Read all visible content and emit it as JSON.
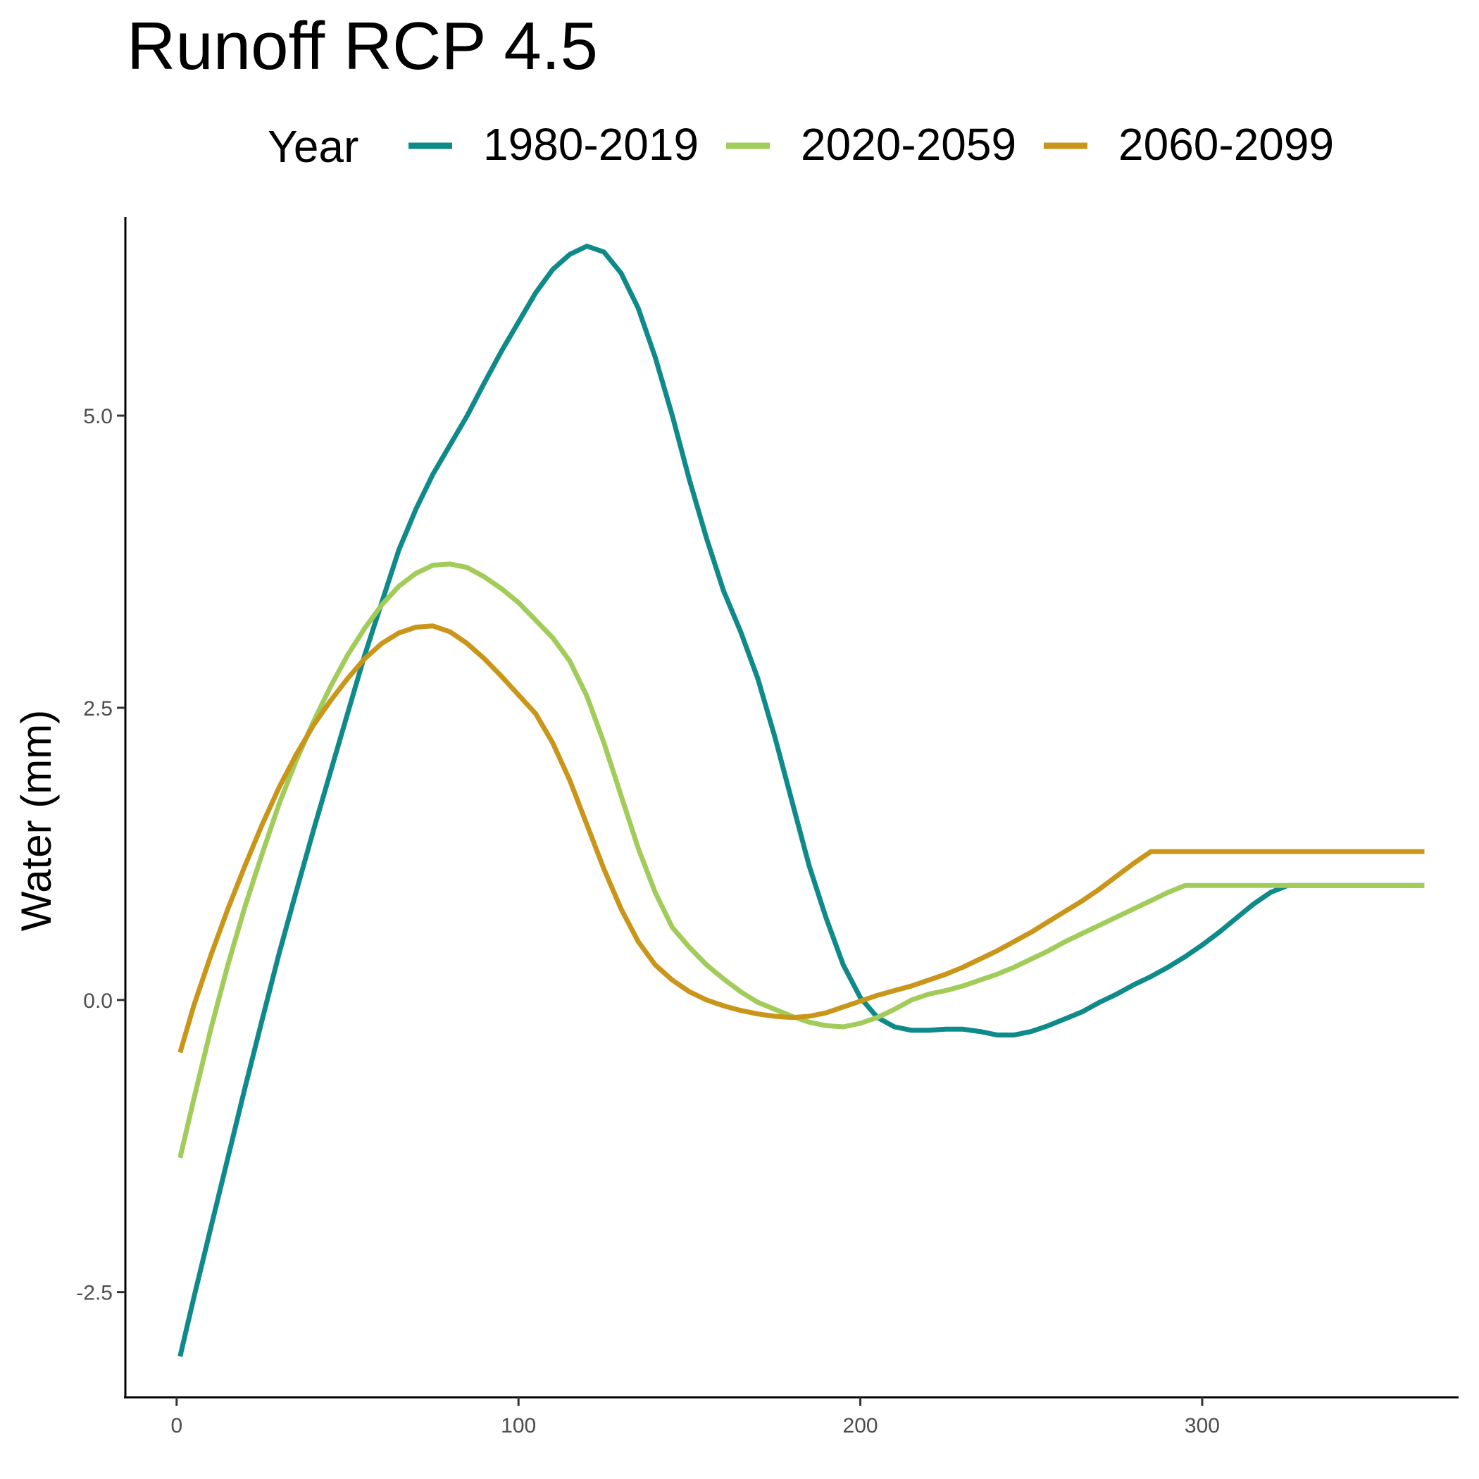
{
  "chart_data": {
    "type": "line",
    "title": "Runoff RCP 4.5",
    "xlabel": "",
    "ylabel": "Water (mm)",
    "legend": {
      "title": "Year",
      "position": "top"
    },
    "grid": false,
    "xlim": [
      -15,
      375
    ],
    "ylim": [
      -3.4,
      6.7
    ],
    "x_ticks": [
      {
        "value": 0,
        "label": "0"
      },
      {
        "value": 100,
        "label": "100"
      },
      {
        "value": 200,
        "label": "200"
      },
      {
        "value": 300,
        "label": "300"
      }
    ],
    "y_ticks": [
      {
        "value": -2.5,
        "label": "-2.5"
      },
      {
        "value": 0,
        "label": "0.0"
      },
      {
        "value": 2.5,
        "label": "2.5"
      },
      {
        "value": 5,
        "label": "5.0"
      }
    ],
    "x": [
      1,
      5,
      10,
      15,
      20,
      25,
      30,
      35,
      40,
      45,
      50,
      55,
      60,
      65,
      70,
      75,
      80,
      85,
      90,
      95,
      100,
      105,
      110,
      115,
      120,
      125,
      130,
      135,
      140,
      145,
      150,
      155,
      160,
      165,
      170,
      175,
      180,
      185,
      190,
      195,
      200,
      205,
      210,
      215,
      220,
      225,
      230,
      235,
      240,
      245,
      250,
      255,
      260,
      265,
      270,
      275,
      280,
      285,
      290,
      295,
      300,
      305,
      310,
      315,
      320,
      325,
      330,
      335,
      340,
      345,
      350,
      355,
      360,
      365
    ],
    "series": [
      {
        "name": "1980-2019",
        "color": "#0f8a8a",
        "values": [
          -3.05,
          -2.55,
          -1.95,
          -1.35,
          -0.75,
          -0.17,
          0.4,
          0.93,
          1.45,
          1.95,
          2.45,
          2.95,
          3.4,
          3.85,
          4.2,
          4.5,
          4.75,
          5.0,
          5.28,
          5.55,
          5.8,
          6.05,
          6.25,
          6.38,
          6.45,
          6.4,
          6.22,
          5.92,
          5.5,
          5.0,
          4.45,
          3.95,
          3.5,
          3.15,
          2.75,
          2.25,
          1.7,
          1.15,
          0.7,
          0.3,
          0.02,
          -0.15,
          -0.23,
          -0.26,
          -0.26,
          -0.25,
          -0.25,
          -0.27,
          -0.3,
          -0.3,
          -0.27,
          -0.22,
          -0.16,
          -0.1,
          -0.02,
          0.05,
          0.13,
          0.2,
          0.28,
          0.37,
          0.47,
          0.58,
          0.7,
          0.82,
          0.92,
          0.98,
          0.98,
          0.98,
          0.98,
          0.98,
          0.98,
          0.98,
          0.98,
          0.98
        ]
      },
      {
        "name": "2020-2059",
        "color": "#a2cc5a",
        "values": [
          -1.35,
          -0.85,
          -0.25,
          0.3,
          0.8,
          1.25,
          1.68,
          2.05,
          2.38,
          2.68,
          2.95,
          3.18,
          3.38,
          3.54,
          3.65,
          3.72,
          3.73,
          3.7,
          3.62,
          3.52,
          3.4,
          3.25,
          3.1,
          2.9,
          2.6,
          2.2,
          1.75,
          1.3,
          0.92,
          0.62,
          0.45,
          0.3,
          0.18,
          0.07,
          -0.02,
          -0.08,
          -0.14,
          -0.19,
          -0.22,
          -0.23,
          -0.2,
          -0.15,
          -0.08,
          0.0,
          0.05,
          0.08,
          0.12,
          0.17,
          0.22,
          0.28,
          0.35,
          0.42,
          0.5,
          0.57,
          0.64,
          0.71,
          0.78,
          0.85,
          0.92,
          0.98,
          0.98,
          0.98,
          0.98,
          0.98,
          0.98,
          0.98,
          0.98,
          0.98,
          0.98,
          0.98,
          0.98,
          0.98,
          0.98,
          0.98
        ]
      },
      {
        "name": "2060-2099",
        "color": "#c9961a",
        "values": [
          -0.45,
          -0.05,
          0.38,
          0.78,
          1.15,
          1.5,
          1.82,
          2.1,
          2.35,
          2.56,
          2.75,
          2.92,
          3.05,
          3.14,
          3.19,
          3.2,
          3.15,
          3.05,
          2.92,
          2.77,
          2.61,
          2.45,
          2.2,
          1.88,
          1.5,
          1.12,
          0.78,
          0.5,
          0.3,
          0.17,
          0.07,
          0.0,
          -0.05,
          -0.09,
          -0.12,
          -0.14,
          -0.15,
          -0.14,
          -0.11,
          -0.06,
          -0.01,
          0.04,
          0.08,
          0.12,
          0.17,
          0.22,
          0.28,
          0.35,
          0.42,
          0.5,
          0.58,
          0.67,
          0.76,
          0.85,
          0.95,
          1.06,
          1.17,
          1.27,
          1.27,
          1.27,
          1.27,
          1.27,
          1.27,
          1.27,
          1.27,
          1.27,
          1.27,
          1.27,
          1.27,
          1.27,
          1.27,
          1.27,
          1.27,
          1.27
        ]
      }
    ]
  }
}
